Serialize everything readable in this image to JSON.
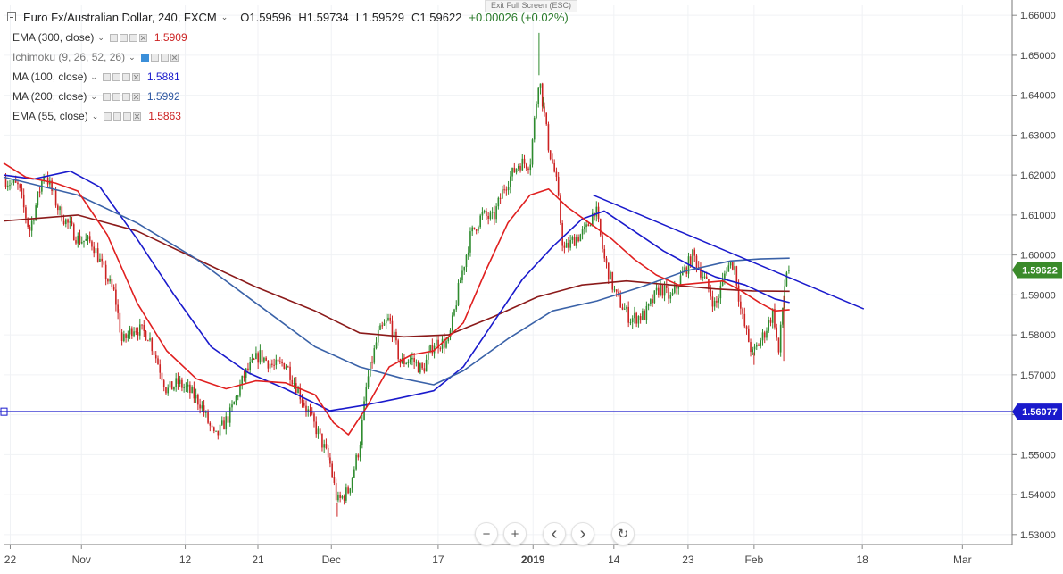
{
  "header": {
    "symbol": "Euro Fx/Australian Dollar, 240, FXCM",
    "open": "O1.59596",
    "high": "H1.59734",
    "low": "L1.59529",
    "close": "C1.59622",
    "change": "+0.00026 (+0.02%)",
    "exit_fullscreen": "Exit Full Screen (ESC)"
  },
  "indicators": [
    {
      "label": "EMA (300, close)",
      "value": "1.5909",
      "color": "#cc2222"
    },
    {
      "label": "Ichimoku (9, 26, 52, 26)",
      "value": "",
      "color": "#555555"
    },
    {
      "label": "MA (100, close)",
      "value": "1.5881",
      "color": "#1a1acc"
    },
    {
      "label": "MA (200, close)",
      "value": "1.5992",
      "color": "#2c55a0"
    },
    {
      "label": "EMA (55, close)",
      "value": "1.5863",
      "color": "#cc2222"
    }
  ],
  "price_labels": {
    "current": "1.59622",
    "support": "1.56077"
  },
  "navigation": {
    "zoom_out": "−",
    "zoom_in": "+",
    "scroll_left": "‹",
    "scroll_right": "›",
    "reset": "↻"
  },
  "colors": {
    "up": "#2e8b2e",
    "down": "#cc2222",
    "current_label_bg": "#3a8a2a",
    "support_line": "#1a1acc",
    "trendline": "#1a1acc",
    "ema300": "#8b1a1a",
    "ema55": "#e02020",
    "ma100": "#1a1acc",
    "ma200": "#3a62a8"
  },
  "chart_data": {
    "type": "candlestick",
    "timeframe": "240",
    "ylim": [
      1.5275,
      1.6625
    ],
    "y_ticks": [
      "1.66000",
      "1.65000",
      "1.64000",
      "1.63000",
      "1.62000",
      "1.61000",
      "1.60000",
      "1.59000",
      "1.58000",
      "1.57000",
      "1.56000",
      "1.55000",
      "1.54000",
      "1.53000"
    ],
    "x_ticks": [
      {
        "label": "22",
        "pos": 0.9
      },
      {
        "label": "Nov",
        "pos": 10.5
      },
      {
        "label": "12",
        "pos": 24.5
      },
      {
        "label": "21",
        "pos": 34.3
      },
      {
        "label": "Dec",
        "pos": 44.2
      },
      {
        "label": "17",
        "pos": 58.6
      },
      {
        "label": "2019",
        "pos": 71.4,
        "bold": true
      },
      {
        "label": "14",
        "pos": 82.3
      },
      {
        "label": "23",
        "pos": 92.3
      },
      {
        "label": "Feb",
        "pos": 101.2
      },
      {
        "label": "18",
        "pos": 115.8
      },
      {
        "label": "Mar",
        "pos": 129.3
      }
    ],
    "x_range": [
      0,
      136
    ],
    "price_path": [
      [
        0,
        1.619
      ],
      [
        2,
        1.617
      ],
      [
        3.5,
        1.606
      ],
      [
        5.5,
        1.621
      ],
      [
        7.5,
        1.611
      ],
      [
        10,
        1.604
      ],
      [
        12,
        1.603
      ],
      [
        13.5,
        1.596
      ],
      [
        15,
        1.59
      ],
      [
        16,
        1.578
      ],
      [
        17.5,
        1.582
      ],
      [
        19.5,
        1.58
      ],
      [
        21,
        1.572
      ],
      [
        22,
        1.566
      ],
      [
        23.5,
        1.568
      ],
      [
        25,
        1.566
      ],
      [
        26.5,
        1.563
      ],
      [
        28.5,
        1.554
      ],
      [
        30.5,
        1.56
      ],
      [
        32.5,
        1.57
      ],
      [
        34.5,
        1.575
      ],
      [
        36.5,
        1.572
      ],
      [
        38,
        1.573
      ],
      [
        39.5,
        1.567
      ],
      [
        41,
        1.561
      ],
      [
        42.5,
        1.555
      ],
      [
        44,
        1.548
      ],
      [
        45,
        1.538
      ],
      [
        46.5,
        1.541
      ],
      [
        48,
        1.552
      ],
      [
        49,
        1.568
      ],
      [
        50.5,
        1.58
      ],
      [
        52,
        1.584
      ],
      [
        53.5,
        1.573
      ],
      [
        55,
        1.574
      ],
      [
        56.5,
        1.571
      ],
      [
        58,
        1.578
      ],
      [
        60,
        1.578
      ],
      [
        61.5,
        1.593
      ],
      [
        63,
        1.605
      ],
      [
        64.5,
        1.61
      ],
      [
        66,
        1.609
      ],
      [
        67.5,
        1.617
      ],
      [
        69.5,
        1.623
      ],
      [
        71,
        1.623
      ],
      [
        72.2,
        1.645
      ],
      [
        73.5,
        1.627
      ],
      [
        74.5,
        1.619
      ],
      [
        75.5,
        1.601
      ],
      [
        77,
        1.604
      ],
      [
        78.5,
        1.606
      ],
      [
        79.8,
        1.612
      ],
      [
        81,
        1.599
      ],
      [
        82.5,
        1.59
      ],
      [
        84.5,
        1.584
      ],
      [
        86.5,
        1.585
      ],
      [
        88.5,
        1.592
      ],
      [
        90,
        1.589
      ],
      [
        91.5,
        1.595
      ],
      [
        93,
        1.6
      ],
      [
        94.5,
        1.594
      ],
      [
        96,
        1.587
      ],
      [
        97.5,
        1.597
      ],
      [
        98.5,
        1.598
      ],
      [
        99.5,
        1.585
      ],
      [
        101,
        1.575
      ],
      [
        102.5,
        1.58
      ],
      [
        103.8,
        1.586
      ],
      [
        104.5,
        1.575
      ],
      [
        105.5,
        1.596
      ]
    ],
    "price_spikes": [
      [
        72.2,
        1.6556
      ],
      [
        45.0,
        1.5345
      ],
      [
        72.8,
        1.6395
      ],
      [
        101.2,
        1.5725
      ],
      [
        105.2,
        1.5735
      ]
    ],
    "last_candle": {
      "x": 105.9,
      "open": 1.59596,
      "high": 1.59734,
      "low": 1.59529,
      "close": 1.59622
    },
    "series": [
      {
        "name": "EMA (300, close)",
        "color": "#8b1a1a",
        "points": [
          [
            0,
            1.6085
          ],
          [
            10,
            1.61
          ],
          [
            18,
            1.606
          ],
          [
            26,
            1.599
          ],
          [
            34,
            1.592
          ],
          [
            42,
            1.586
          ],
          [
            48,
            1.5805
          ],
          [
            54,
            1.5795
          ],
          [
            60,
            1.58
          ],
          [
            66,
            1.5845
          ],
          [
            72,
            1.5895
          ],
          [
            78,
            1.5925
          ],
          [
            84,
            1.5935
          ],
          [
            90,
            1.5925
          ],
          [
            96,
            1.5915
          ],
          [
            101,
            1.591
          ],
          [
            106,
            1.5909
          ]
        ]
      },
      {
        "name": "MA (100, close)",
        "color": "#1a1acc",
        "points": [
          [
            0,
            1.62
          ],
          [
            4,
            1.619
          ],
          [
            9,
            1.621
          ],
          [
            13,
            1.617
          ],
          [
            18,
            1.604
          ],
          [
            23,
            1.59
          ],
          [
            28,
            1.577
          ],
          [
            33,
            1.5705
          ],
          [
            38,
            1.5665
          ],
          [
            44,
            1.561
          ],
          [
            49,
            1.5625
          ],
          [
            53,
            1.564
          ],
          [
            58,
            1.566
          ],
          [
            62,
            1.572
          ],
          [
            66,
            1.583
          ],
          [
            70,
            1.594
          ],
          [
            74,
            1.602
          ],
          [
            78,
            1.609
          ],
          [
            81,
            1.611
          ],
          [
            85,
            1.606
          ],
          [
            89,
            1.601
          ],
          [
            93,
            1.597
          ],
          [
            96,
            1.5945
          ],
          [
            100,
            1.5925
          ],
          [
            104,
            1.589
          ],
          [
            106,
            1.5881
          ]
        ]
      },
      {
        "name": "MA (200, close)",
        "color": "#3a62a8",
        "points": [
          [
            0,
            1.6195
          ],
          [
            10,
            1.615
          ],
          [
            18,
            1.608
          ],
          [
            26,
            1.599
          ],
          [
            34,
            1.588
          ],
          [
            42,
            1.577
          ],
          [
            48,
            1.572
          ],
          [
            54,
            1.569
          ],
          [
            58,
            1.5675
          ],
          [
            62,
            1.571
          ],
          [
            68,
            1.579
          ],
          [
            74,
            1.586
          ],
          [
            80,
            1.5885
          ],
          [
            86,
            1.592
          ],
          [
            92,
            1.596
          ],
          [
            98,
            1.5985
          ],
          [
            102,
            1.599
          ],
          [
            106,
            1.5992
          ]
        ]
      },
      {
        "name": "EMA (55, close)",
        "color": "#e02020",
        "points": [
          [
            0,
            1.623
          ],
          [
            3,
            1.6195
          ],
          [
            7,
            1.618
          ],
          [
            10,
            1.616
          ],
          [
            14,
            1.605
          ],
          [
            18,
            1.588
          ],
          [
            22,
            1.576
          ],
          [
            26,
            1.569
          ],
          [
            30,
            1.5665
          ],
          [
            34,
            1.5685
          ],
          [
            38,
            1.568
          ],
          [
            42,
            1.565
          ],
          [
            44.5,
            1.558
          ],
          [
            46.5,
            1.555
          ],
          [
            49,
            1.562
          ],
          [
            52,
            1.572
          ],
          [
            55,
            1.575
          ],
          [
            58,
            1.576
          ],
          [
            62,
            1.583
          ],
          [
            65,
            1.596
          ],
          [
            68,
            1.608
          ],
          [
            71,
            1.615
          ],
          [
            73.5,
            1.6165
          ],
          [
            76,
            1.612
          ],
          [
            79,
            1.608
          ],
          [
            82,
            1.604
          ],
          [
            85,
            1.599
          ],
          [
            88,
            1.595
          ],
          [
            91,
            1.5925
          ],
          [
            94,
            1.593
          ],
          [
            97,
            1.5935
          ],
          [
            99.5,
            1.591
          ],
          [
            102,
            1.588
          ],
          [
            104,
            1.586
          ],
          [
            106,
            1.5863
          ]
        ]
      }
    ],
    "trendline": {
      "from": [
        79.5,
        1.615
      ],
      "to": [
        116,
        1.5865
      ]
    },
    "support_level": 1.56077,
    "current_price": 1.59622
  }
}
